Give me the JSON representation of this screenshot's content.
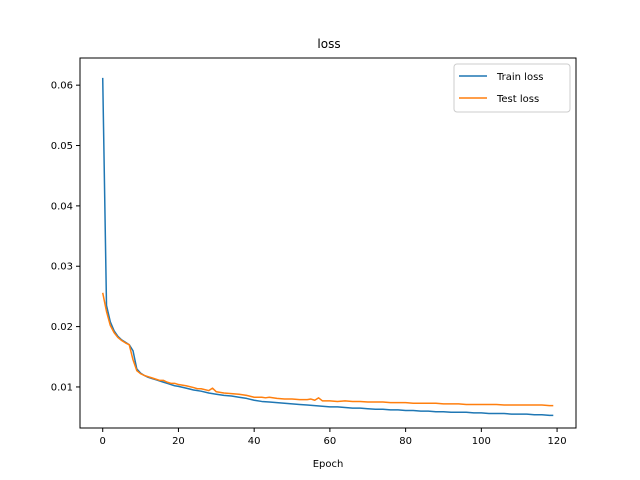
{
  "chart_data": {
    "type": "line",
    "title": "loss",
    "xlabel": "Epoch",
    "ylabel": "",
    "xlim": [
      -6,
      125
    ],
    "ylim": [
      0.0032,
      0.0645
    ],
    "xticks": [
      0,
      20,
      40,
      60,
      80,
      100,
      120
    ],
    "yticks": [
      0.01,
      0.02,
      0.03,
      0.04,
      0.05,
      0.06
    ],
    "grid": false,
    "legend_position": "top-right",
    "series": [
      {
        "name": "Train loss",
        "color": "#1f77b4",
        "x": [
          0,
          1,
          2,
          3,
          4,
          5,
          6,
          7,
          8,
          9,
          10,
          11,
          12,
          13,
          14,
          15,
          16,
          17,
          18,
          19,
          20,
          22,
          24,
          26,
          28,
          30,
          32,
          34,
          36,
          38,
          40,
          42,
          44,
          46,
          48,
          50,
          52,
          54,
          56,
          58,
          60,
          62,
          64,
          66,
          68,
          70,
          72,
          74,
          76,
          78,
          80,
          82,
          84,
          86,
          88,
          90,
          92,
          94,
          96,
          98,
          100,
          102,
          104,
          106,
          108,
          110,
          112,
          114,
          116,
          118,
          119
        ],
        "y": [
          0.0612,
          0.0235,
          0.0208,
          0.0193,
          0.0184,
          0.0178,
          0.0174,
          0.017,
          0.016,
          0.013,
          0.0123,
          0.0119,
          0.0116,
          0.0114,
          0.0112,
          0.011,
          0.0108,
          0.0106,
          0.0104,
          0.0102,
          0.0101,
          0.0098,
          0.0095,
          0.0093,
          0.009,
          0.0088,
          0.0086,
          0.0085,
          0.0083,
          0.0081,
          0.0078,
          0.0076,
          0.0075,
          0.0074,
          0.0073,
          0.0072,
          0.0071,
          0.007,
          0.0069,
          0.0068,
          0.0067,
          0.0067,
          0.0066,
          0.0065,
          0.0065,
          0.0064,
          0.0063,
          0.0063,
          0.0062,
          0.0062,
          0.0061,
          0.0061,
          0.006,
          0.006,
          0.0059,
          0.0059,
          0.0058,
          0.0058,
          0.0058,
          0.0057,
          0.0057,
          0.0056,
          0.0056,
          0.0056,
          0.0055,
          0.0055,
          0.0055,
          0.0054,
          0.0054,
          0.0053,
          0.0053
        ]
      },
      {
        "name": "Test loss",
        "color": "#ff7f0e",
        "x": [
          0,
          1,
          2,
          3,
          4,
          5,
          6,
          7,
          8,
          9,
          10,
          11,
          12,
          13,
          14,
          15,
          16,
          17,
          18,
          19,
          20,
          22,
          24,
          25,
          26,
          28,
          29,
          30,
          32,
          34,
          36,
          38,
          40,
          42,
          43,
          44,
          46,
          48,
          50,
          52,
          54,
          55,
          56,
          57,
          58,
          60,
          62,
          64,
          66,
          68,
          70,
          72,
          74,
          76,
          78,
          80,
          82,
          84,
          86,
          88,
          90,
          92,
          94,
          96,
          98,
          100,
          102,
          104,
          106,
          108,
          110,
          112,
          114,
          116,
          118,
          119
        ],
        "y": [
          0.0256,
          0.0225,
          0.0202,
          0.019,
          0.0182,
          0.0177,
          0.0173,
          0.017,
          0.0145,
          0.0127,
          0.0122,
          0.0119,
          0.0117,
          0.0115,
          0.0113,
          0.0111,
          0.0111,
          0.0108,
          0.0106,
          0.0106,
          0.0104,
          0.0102,
          0.0099,
          0.0097,
          0.0097,
          0.0094,
          0.0098,
          0.0092,
          0.009,
          0.0089,
          0.0088,
          0.0086,
          0.0083,
          0.0083,
          0.0082,
          0.0083,
          0.0081,
          0.008,
          0.008,
          0.0079,
          0.0079,
          0.008,
          0.0078,
          0.0082,
          0.0077,
          0.0077,
          0.0076,
          0.0077,
          0.0076,
          0.0076,
          0.0075,
          0.0075,
          0.0075,
          0.0074,
          0.0074,
          0.0074,
          0.0073,
          0.0073,
          0.0073,
          0.0073,
          0.0072,
          0.0072,
          0.0072,
          0.0071,
          0.0071,
          0.0071,
          0.0071,
          0.0071,
          0.007,
          0.007,
          0.007,
          0.007,
          0.007,
          0.007,
          0.0069,
          0.0069
        ]
      }
    ]
  }
}
